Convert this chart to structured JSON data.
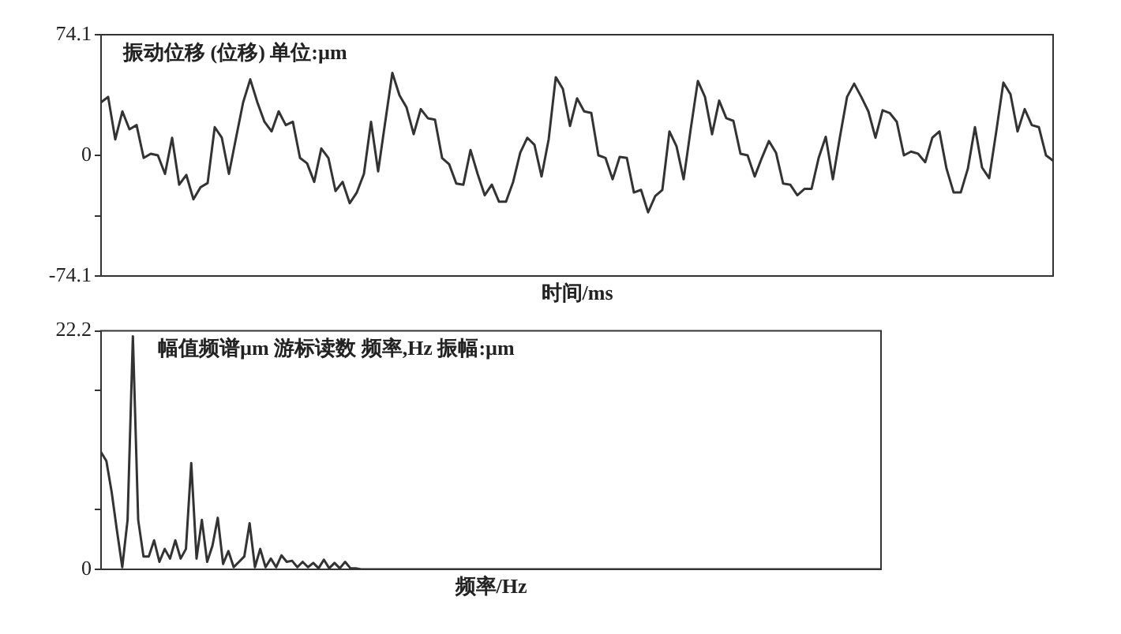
{
  "chart_data": [
    {
      "type": "line",
      "title": "振动位移 (位移) 单位:µm",
      "xlabel": "时间/ms",
      "color": "#333333",
      "ylim": [
        -74.1,
        74.1
      ],
      "yticks": [
        -74.1,
        {
          "value": -37.05,
          "label": null
        },
        0,
        74.1
      ],
      "tick_labels": "y",
      "grid": false,
      "categories": [
        null,
        null,
        null,
        null,
        null,
        null,
        null,
        null,
        null,
        null,
        null,
        null,
        null,
        null,
        null,
        null,
        null,
        null,
        null,
        null,
        null,
        null,
        null,
        null,
        null,
        null,
        null,
        null,
        null,
        null,
        null,
        null,
        null,
        null,
        null,
        null,
        null,
        null,
        null,
        null,
        null,
        null,
        null,
        null,
        null,
        null,
        null,
        null,
        null,
        null,
        null,
        null,
        null,
        null,
        null,
        null,
        null,
        null,
        null,
        null,
        null,
        null,
        null,
        null,
        null,
        null,
        null,
        null,
        null,
        null,
        null,
        null,
        null,
        null,
        null,
        null,
        null,
        null,
        null,
        null,
        null,
        null,
        null,
        null,
        null,
        null,
        null,
        null,
        null,
        null,
        null,
        null,
        null,
        null,
        null,
        null,
        null,
        null,
        null,
        null,
        null,
        null,
        null,
        null,
        null,
        null,
        null,
        null,
        null,
        null,
        null,
        null,
        null,
        null,
        null,
        null,
        null,
        null,
        null,
        null,
        null,
        null,
        null,
        null,
        null,
        null,
        null,
        null,
        null,
        null,
        null,
        null,
        null,
        null,
        null
      ],
      "values": [
        32.6,
        35.9,
        9.8,
        27,
        16,
        18.6,
        -1.6,
        1,
        0,
        -11.4,
        10.8,
        -18,
        -12,
        -27,
        -19.6,
        -17,
        17.3,
        10.8,
        -11.4,
        10.8,
        32.6,
        46.7,
        32.6,
        20.6,
        14.7,
        27,
        18.6,
        20.6,
        -1.6,
        -4.9,
        -16.3,
        4.2,
        -1.6,
        -21.9,
        -16.3,
        -29.4,
        -22.8,
        -11.4,
        20.6,
        -9.8,
        20.6,
        50.6,
        36.9,
        29.4,
        13,
        28.4,
        22.8,
        21.9,
        -1.6,
        -5.5,
        -17.3,
        -18,
        3.3,
        -11.4,
        -24.5,
        -18,
        -28.4,
        -28.4,
        -16.3,
        1.6,
        10.8,
        6.5,
        -13,
        9.8,
        48,
        40.8,
        18,
        35,
        27,
        26,
        0,
        -1.6,
        -14.7,
        -1,
        -1.6,
        -22.8,
        -21.2,
        -35,
        -25,
        -21.2,
        14.7,
        5.5,
        -14.7,
        16.3,
        45.7,
        35.9,
        13,
        33.6,
        22.8,
        21.2,
        1,
        0,
        -13,
        -1.6,
        8.8,
        1.6,
        -17.3,
        -18,
        -24.5,
        -20.6,
        -20.6,
        -1.6,
        11.4,
        -14.7,
        11.4,
        35.9,
        44,
        35.9,
        27,
        10.8,
        27.7,
        26,
        20.6,
        0,
        2.3,
        1,
        -4.2,
        10.8,
        14.7,
        -8.2,
        -22.8,
        -22.8,
        -8.2,
        17.3,
        -7.5,
        -14,
        14.7,
        44.7,
        37.5,
        14.7,
        28.4,
        18.6,
        17.3,
        0,
        -3.3
      ]
    },
    {
      "type": "line",
      "title": "幅值频谱µm 游标读数 频率,Hz 振幅:µm",
      "xlabel": "频率/Hz",
      "color": "#333333",
      "ylim": [
        0,
        22.2
      ],
      "yticks": [
        0,
        {
          "value": 5.55,
          "label": null
        },
        {
          "value": 16.65,
          "label": null
        },
        22.2
      ],
      "tick_labels": "y",
      "grid": false,
      "categories": [
        null,
        null,
        null,
        null,
        null,
        null,
        null,
        null,
        null,
        null,
        null,
        null,
        null,
        null,
        null,
        null,
        null,
        null,
        null,
        null,
        null,
        null,
        null,
        null,
        null,
        null,
        null,
        null,
        null,
        null,
        null,
        null,
        null,
        null,
        null,
        null,
        null,
        null,
        null,
        null,
        null,
        null,
        null,
        null,
        null,
        null,
        null,
        null,
        null,
        null,
        null,
        null,
        null,
        null,
        null,
        null,
        null,
        null,
        null,
        null,
        null,
        null,
        null,
        null,
        null,
        null,
        null,
        null,
        null,
        null,
        null,
        null,
        null,
        null,
        null,
        null,
        null,
        null,
        null,
        null,
        null,
        null,
        null,
        null,
        null,
        null,
        null,
        null,
        null,
        null,
        null,
        null,
        null,
        null,
        null,
        null,
        null,
        null,
        null,
        null,
        null,
        null,
        null,
        null,
        null,
        null,
        null,
        null,
        null,
        null,
        null,
        null,
        null,
        null,
        null,
        null,
        null,
        null,
        null,
        null,
        null,
        null,
        null,
        null,
        null,
        null,
        null,
        null,
        null,
        null,
        null,
        null,
        null,
        null,
        null,
        null,
        null,
        null,
        null,
        null,
        null,
        null,
        null,
        null,
        null,
        null,
        null,
        null
      ],
      "values": [
        10.9,
        10.1,
        7.2,
        3.6,
        0.2,
        4.6,
        21.7,
        4.6,
        1.2,
        1.2,
        2.7,
        0.7,
        1.9,
        1,
        2.7,
        1,
        1.9,
        9.9,
        1,
        4.6,
        0.7,
        2.2,
        4.8,
        0.5,
        1.7,
        0.2,
        0.7,
        1.2,
        4.3,
        0.2,
        1.9,
        0.2,
        1,
        0.2,
        1.3,
        0.7,
        0.8,
        0.2,
        0.7,
        0.2,
        0.6,
        0.1,
        0.9,
        0.1,
        0.6,
        0.1,
        0.7,
        0.1,
        0.1,
        0,
        0,
        0,
        0,
        0,
        0,
        0,
        0,
        0,
        0,
        0,
        0,
        0,
        0,
        0,
        0,
        0,
        0,
        0,
        0,
        0,
        0,
        0,
        0,
        0,
        0,
        0,
        0,
        0,
        0,
        0,
        0,
        0,
        0,
        0,
        0,
        0,
        0,
        0,
        0,
        0,
        0,
        0,
        0,
        0,
        0,
        0,
        0,
        0,
        0,
        0,
        0,
        0,
        0,
        0,
        0,
        0,
        0,
        0,
        0,
        0,
        0,
        0,
        0,
        0,
        0,
        0,
        0,
        0,
        0,
        0,
        0,
        0,
        0,
        0,
        0,
        0,
        0,
        0,
        0,
        0,
        0,
        0,
        0,
        0,
        0,
        0,
        0,
        0,
        0,
        0,
        0,
        0,
        0,
        0,
        0,
        0,
        0,
        0
      ]
    }
  ]
}
